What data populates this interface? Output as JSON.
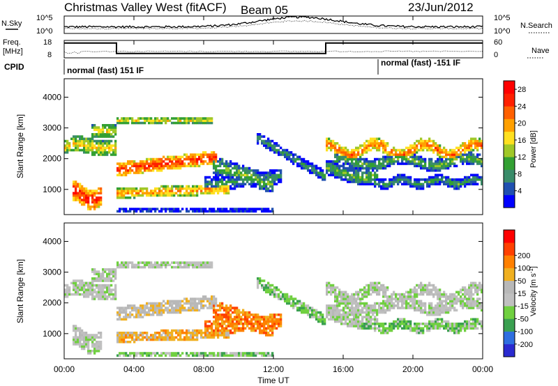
{
  "header": {
    "title": "Christmas Valley West (fitACF)",
    "beam": "Beam 05",
    "date": "23/Jun/2012"
  },
  "top_panels": {
    "nsky_label": "N.Sky",
    "nsearch_label": "N.Search",
    "nsky_ticks": [
      "10^5",
      "10^0"
    ],
    "nsearch_ticks": [
      "10^5",
      "10^0"
    ],
    "freq_label_1": "Freq.",
    "freq_label_2": "[MHz]",
    "freq_ticks": [
      "18",
      "8"
    ],
    "nave_label": "Nave",
    "nave_ticks": [
      "60",
      "0"
    ],
    "cpid_label": "CPID",
    "cpid_segments": [
      {
        "text": "normal (fast) 151 IF",
        "start": 0,
        "end": 18
      },
      {
        "text": "normal (fast) -151 IF",
        "start": 18,
        "end": 24
      }
    ]
  },
  "colors": {
    "power": [
      "#0000ff",
      "#2050b0",
      "#3a8c6a",
      "#33a033",
      "#a0c828",
      "#ffe020",
      "#ffa000",
      "#ff6000",
      "#ff2000",
      "#ff0000"
    ],
    "velocity": [
      "#2a2ad0",
      "#2e6ee0",
      "#3aa050",
      "#70d040",
      "#c0c0c0",
      "#b8b8b8",
      "#f0b020",
      "#ff8000",
      "#ff4000",
      "#ff0000"
    ]
  },
  "chart_data": [
    {
      "type": "line",
      "panel": "noise",
      "series": [
        {
          "name": "N.Sky"
        },
        {
          "name": "N.Search"
        }
      ],
      "yscale": "log"
    },
    {
      "type": "line",
      "panel": "frequency",
      "series": [
        {
          "name": "Freq."
        },
        {
          "name": "Nave"
        }
      ],
      "freq_segments": [
        {
          "start": 0,
          "end": 3,
          "value": 16.5
        },
        {
          "start": 3,
          "end": 15,
          "value": 10.5
        },
        {
          "start": 15,
          "end": 24,
          "value": 16.5
        }
      ]
    },
    {
      "type": "heatmap",
      "panel": "power",
      "ylabel": "Slant Range [km]",
      "xlabel": "",
      "xlim": [
        0,
        24
      ],
      "ylim": [
        180,
        4600
      ],
      "yticks": [
        "1000",
        "2000",
        "3000",
        "4000"
      ],
      "colorbar_label": "Power [dB]",
      "colorbar_ticks": [
        "4",
        "8",
        "12",
        "16",
        "20",
        "24",
        "28"
      ],
      "colorbar_range": [
        0,
        30
      ]
    },
    {
      "type": "heatmap",
      "panel": "velocity",
      "ylabel": "Slant Range [km]",
      "xlabel": "Time UT",
      "xlim": [
        0,
        24
      ],
      "ylim": [
        180,
        4600
      ],
      "xticks": [
        "00:00",
        "04:00",
        "08:00",
        "12:00",
        "16:00",
        "20:00",
        "00:00"
      ],
      "yticks": [
        "1000",
        "2000",
        "3000",
        "4000"
      ],
      "colorbar_label": "Velocity [m s",
      "colorbar_label_sup": "-1",
      "colorbar_label_end": "]",
      "colorbar_ticks": [
        "-200",
        "-100",
        "-50",
        "-15",
        "15",
        "50",
        "100",
        "200"
      ]
    }
  ]
}
